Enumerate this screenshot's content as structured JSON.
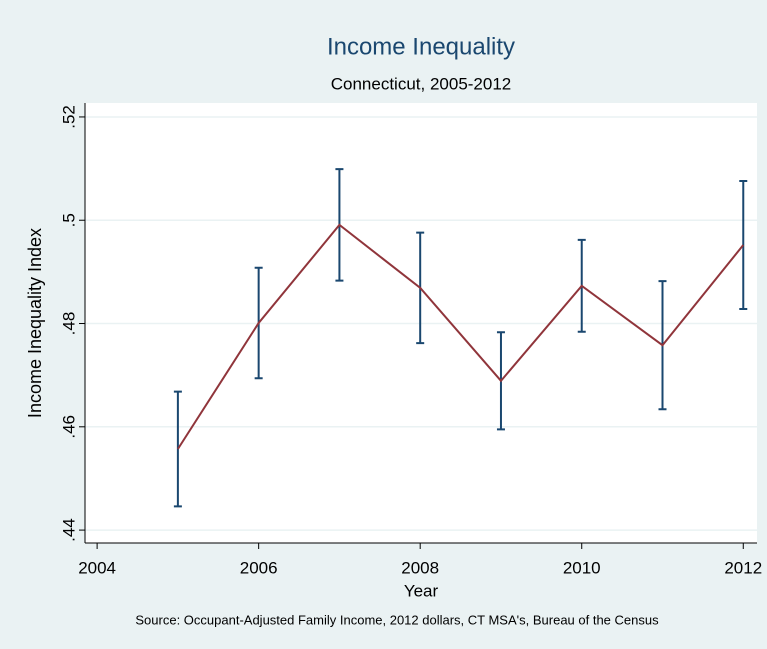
{
  "chart_data": {
    "type": "line",
    "title": "Income Inequality",
    "subtitle": "Connecticut, 2005-2012",
    "y_label": "Income Inequality Index",
    "x_label": "Year",
    "note": "Source: Occupant-Adjusted Family Income, 2012 dollars, CT MSA's, Bureau of the Census",
    "x": [
      2005,
      2006,
      2007,
      2008,
      2009,
      2010,
      2011,
      2012
    ],
    "values": [
      0.4557,
      0.4801,
      0.4991,
      0.4869,
      0.4689,
      0.4873,
      0.4758,
      0.4952
    ],
    "errors": [
      0.0111,
      0.0107,
      0.0108,
      0.0107,
      0.0094,
      0.0089,
      0.0124,
      0.0124
    ],
    "color": "#90353b",
    "error_color": "#1a476f",
    "xlim": [
      2003.85,
      2012.17
    ],
    "ylim": [
      0.4375,
      0.5227
    ],
    "xticks": [
      2004,
      2006,
      2008,
      2010,
      2012
    ],
    "yticks": [
      {
        "value": 0.44,
        "label": ".44"
      },
      {
        "value": 0.46,
        "label": ".46"
      },
      {
        "value": 0.48,
        "label": ".48"
      },
      {
        "value": 0.5,
        "label": ".5"
      },
      {
        "value": 0.52,
        "label": ".52"
      }
    ],
    "grid": true
  }
}
